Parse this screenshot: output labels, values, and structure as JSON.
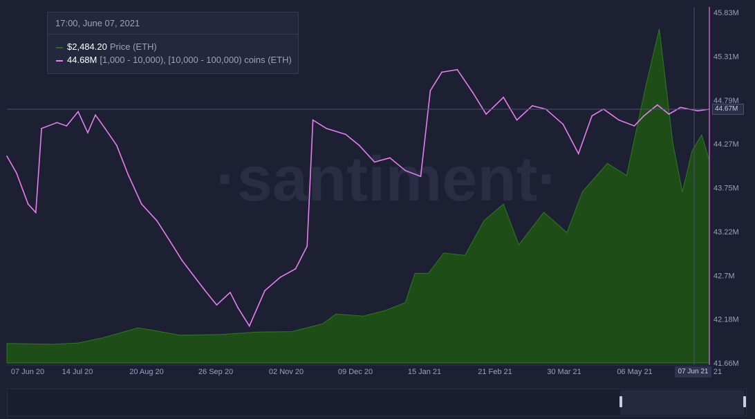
{
  "tooltip": {
    "date": "17:00, June 07, 2021",
    "rows": [
      {
        "value": "$2,484.20",
        "label": "Price (ETH)",
        "color": "#2d6b1e"
      },
      {
        "value": "44.68M",
        "label": "[1,000 - 10,000), [10,000 - 100,000) coins (ETH)",
        "color": "#e87ef0"
      }
    ]
  },
  "watermark": "·santiment·",
  "hover": {
    "y_label": "44.67M",
    "x_label": "07 Jun 21"
  },
  "chart_data": {
    "type": "line",
    "x_tick_labels": [
      "07 Jun 20",
      "14 Jul 20",
      "20 Aug 20",
      "26 Sep 20",
      "02 Nov 20",
      "09 Dec 20",
      "15 Jan 21",
      "21 Feb 21",
      "30 Mar 21",
      "06 May 21",
      "21"
    ],
    "y_tick_labels": [
      "45.83M",
      "45.31M",
      "44.79M",
      "44.27M",
      "43.75M",
      "43.22M",
      "42.7M",
      "42.18M",
      "41.66M"
    ],
    "ylim": [
      41.66,
      45.83
    ],
    "x_start": "2020-06-07",
    "x_end": "2021-06-07",
    "grid": false,
    "series": [
      {
        "name": "[1,000 - 10,000), [10,000 - 100,000) coins (ETH)",
        "kind": "line",
        "color": "#e87ef0",
        "unit": "M",
        "points": [
          [
            "2020-06-07",
            44.12
          ],
          [
            "2020-06-12",
            43.92
          ],
          [
            "2020-06-18",
            43.55
          ],
          [
            "2020-06-22",
            43.45
          ],
          [
            "2020-06-25",
            44.45
          ],
          [
            "2020-07-03",
            44.52
          ],
          [
            "2020-07-08",
            44.48
          ],
          [
            "2020-07-14",
            44.65
          ],
          [
            "2020-07-19",
            44.4
          ],
          [
            "2020-07-23",
            44.61
          ],
          [
            "2020-07-28",
            44.45
          ],
          [
            "2020-08-03",
            44.25
          ],
          [
            "2020-08-09",
            43.9
          ],
          [
            "2020-08-16",
            43.55
          ],
          [
            "2020-08-24",
            43.35
          ],
          [
            "2020-08-31",
            43.1
          ],
          [
            "2020-09-06",
            42.88
          ],
          [
            "2020-09-12",
            42.7
          ],
          [
            "2020-09-18",
            42.52
          ],
          [
            "2020-09-24",
            42.35
          ],
          [
            "2020-10-01",
            42.5
          ],
          [
            "2020-10-05",
            42.32
          ],
          [
            "2020-10-11",
            42.1
          ],
          [
            "2020-10-19",
            42.52
          ],
          [
            "2020-10-27",
            42.68
          ],
          [
            "2020-11-04",
            42.78
          ],
          [
            "2020-11-10",
            43.05
          ],
          [
            "2020-11-13",
            44.55
          ],
          [
            "2020-11-20",
            44.45
          ],
          [
            "2020-11-30",
            44.38
          ],
          [
            "2020-12-07",
            44.25
          ],
          [
            "2020-12-15",
            44.05
          ],
          [
            "2020-12-23",
            44.1
          ],
          [
            "2020-12-31",
            43.95
          ],
          [
            "2021-01-08",
            43.88
          ],
          [
            "2021-01-13",
            44.9
          ],
          [
            "2021-01-19",
            45.12
          ],
          [
            "2021-01-27",
            45.15
          ],
          [
            "2021-02-04",
            44.88
          ],
          [
            "2021-02-11",
            44.62
          ],
          [
            "2021-02-20",
            44.82
          ],
          [
            "2021-02-27",
            44.55
          ],
          [
            "2021-03-07",
            44.72
          ],
          [
            "2021-03-14",
            44.68
          ],
          [
            "2021-03-23",
            44.5
          ],
          [
            "2021-03-31",
            44.15
          ],
          [
            "2021-04-07",
            44.6
          ],
          [
            "2021-04-13",
            44.68
          ],
          [
            "2021-04-21",
            44.55
          ],
          [
            "2021-04-29",
            44.48
          ],
          [
            "2021-05-04",
            44.6
          ],
          [
            "2021-05-11",
            44.73
          ],
          [
            "2021-05-17",
            44.62
          ],
          [
            "2021-05-23",
            44.7
          ],
          [
            "2021-06-01",
            44.66
          ],
          [
            "2021-06-07",
            44.68
          ]
        ]
      },
      {
        "name": "Price (ETH)",
        "kind": "area",
        "color": "#2d6b1e",
        "unit": "$",
        "points": [
          [
            "2020-06-07",
            240
          ],
          [
            "2020-07-01",
            230
          ],
          [
            "2020-07-14",
            245
          ],
          [
            "2020-07-27",
            310
          ],
          [
            "2020-08-14",
            430
          ],
          [
            "2020-08-20",
            410
          ],
          [
            "2020-09-05",
            340
          ],
          [
            "2020-09-26",
            350
          ],
          [
            "2020-10-15",
            380
          ],
          [
            "2020-11-02",
            385
          ],
          [
            "2020-11-18",
            480
          ],
          [
            "2020-11-25",
            600
          ],
          [
            "2020-12-09",
            575
          ],
          [
            "2020-12-20",
            640
          ],
          [
            "2020-12-31",
            740
          ],
          [
            "2021-01-05",
            1100
          ],
          [
            "2021-01-12",
            1100
          ],
          [
            "2021-01-20",
            1350
          ],
          [
            "2021-01-31",
            1320
          ],
          [
            "2021-02-10",
            1750
          ],
          [
            "2021-02-20",
            1950
          ],
          [
            "2021-02-28",
            1450
          ],
          [
            "2021-03-13",
            1850
          ],
          [
            "2021-03-25",
            1600
          ],
          [
            "2021-04-02",
            2100
          ],
          [
            "2021-04-15",
            2450
          ],
          [
            "2021-04-25",
            2300
          ],
          [
            "2021-05-05",
            3400
          ],
          [
            "2021-05-12",
            4100
          ],
          [
            "2021-05-19",
            2700
          ],
          [
            "2021-05-24",
            2100
          ],
          [
            "2021-05-29",
            2600
          ],
          [
            "2021-06-03",
            2800
          ],
          [
            "2021-06-07",
            2484.2
          ]
        ]
      }
    ]
  }
}
